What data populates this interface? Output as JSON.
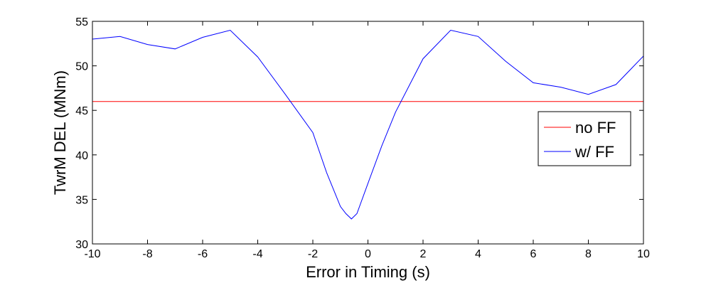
{
  "chart_data": {
    "type": "line",
    "title": "",
    "xlabel": "Error in Timing (s)",
    "ylabel": "TwrM DEL (MNm)",
    "xlim": [
      -10,
      10
    ],
    "ylim": [
      30,
      55
    ],
    "xticks": [
      -10,
      -8,
      -6,
      -4,
      -2,
      0,
      2,
      4,
      6,
      8,
      10
    ],
    "yticks": [
      30,
      35,
      40,
      45,
      50,
      55
    ],
    "grid": false,
    "legend_position": "right",
    "series": [
      {
        "name": "no FF",
        "color": "#ff0000",
        "x": [
          -10,
          10
        ],
        "y": [
          46.0,
          46.0
        ]
      },
      {
        "name": "w/ FF",
        "color": "#0000ff",
        "x": [
          -10,
          -9,
          -8,
          -7,
          -6,
          -5,
          -4,
          -3,
          -2,
          -1.5,
          -1,
          -0.8,
          -0.6,
          -0.4,
          0,
          0.5,
          1,
          2,
          3,
          4,
          5,
          6,
          7,
          8,
          9,
          10
        ],
        "y": [
          53.0,
          53.3,
          52.4,
          51.9,
          53.2,
          54.0,
          51.0,
          46.8,
          42.5,
          38.0,
          34.2,
          33.4,
          32.8,
          33.4,
          36.8,
          41.0,
          44.8,
          50.8,
          54.0,
          53.3,
          50.5,
          48.1,
          47.6,
          46.8,
          47.9,
          51.1
        ]
      }
    ]
  }
}
